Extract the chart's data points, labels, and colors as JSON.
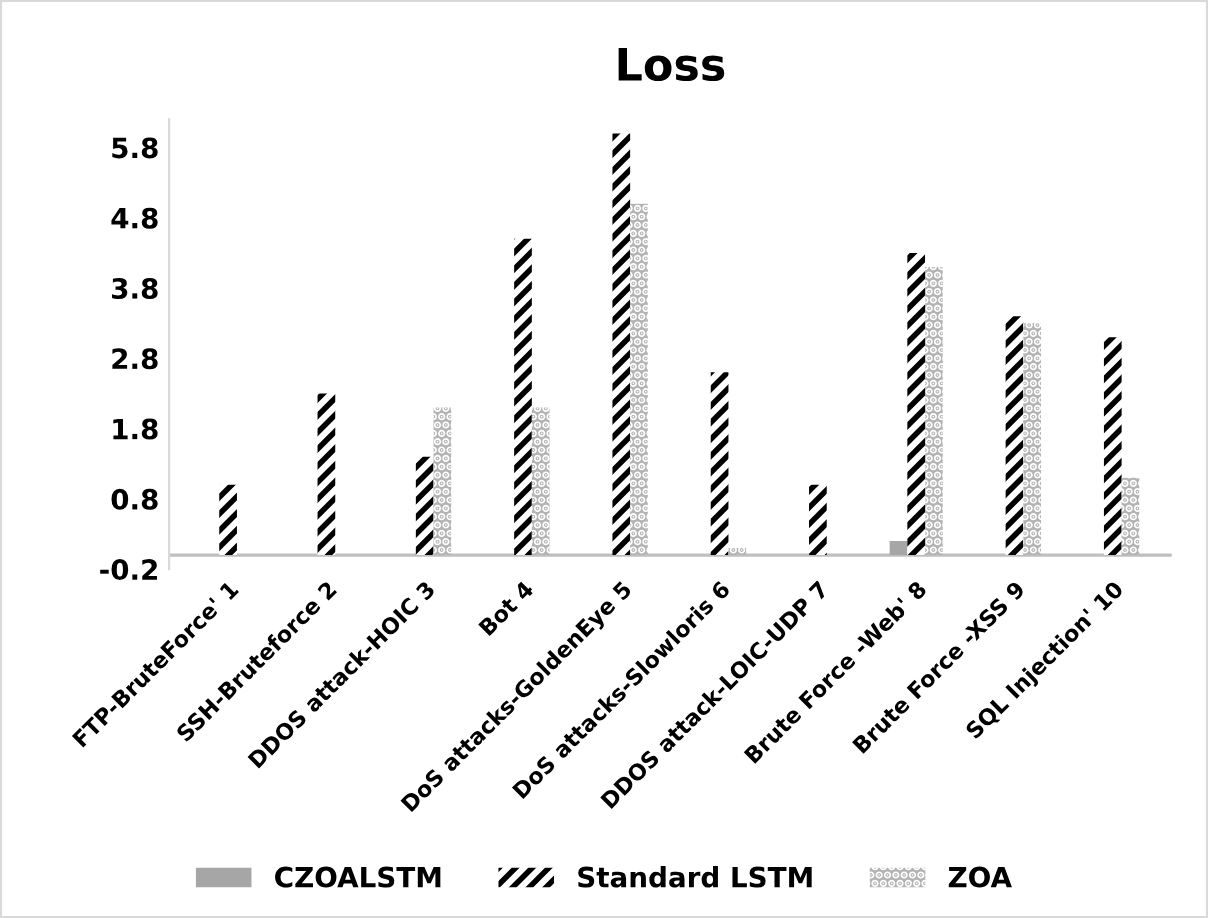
{
  "chart_data": {
    "type": "bar",
    "title": "Loss",
    "categories": [
      "FTP-BruteForce' 1",
      "SSH-Bruteforce 2",
      "DDOS attack-HOIC 3",
      "Bot 4",
      "DoS attacks-GoldenEye 5",
      "DoS attacks-Slowloris 6",
      "DDOS attack-LOIC-UDP 7",
      "Brute Force -Web' 8",
      "Brute Force -XSS 9",
      "SQL Injection' 10"
    ],
    "series": [
      {
        "name": "CZOALSTM",
        "color": "#a6a6a6",
        "values": [
          0,
          0,
          0,
          0,
          0,
          0,
          0,
          0.2,
          0,
          0
        ]
      },
      {
        "name": "Standard LSTM",
        "color": "#000000",
        "values": [
          1.0,
          2.3,
          1.4,
          4.5,
          6.0,
          2.6,
          1.0,
          4.3,
          3.4,
          3.1
        ]
      },
      {
        "name": "ZOA",
        "color": "#b3b3b3",
        "values": [
          0,
          0,
          2.1,
          2.1,
          5.0,
          0.1,
          0,
          4.1,
          3.3,
          1.1
        ]
      }
    ],
    "ylim": [
      -0.2,
      6.2
    ],
    "yticks": [
      -0.2,
      0.8,
      1.8,
      2.8,
      3.8,
      4.8,
      5.8
    ],
    "grid": false,
    "legend": "bottom"
  }
}
